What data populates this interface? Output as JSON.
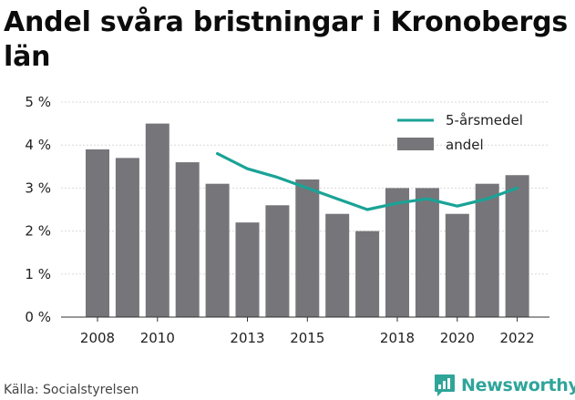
{
  "title": "Andel svåra bristningar i Kronobergs län",
  "source": "Källa: Socialstyrelsen",
  "brand": "Newsworthy",
  "colors": {
    "bar": "#76757a",
    "line": "#1aa396",
    "grid": "#d9d9d9",
    "brand": "#2fa59a"
  },
  "chart_data": {
    "type": "bar",
    "title": "Andel svåra bristningar i Kronobergs län",
    "x": [
      2008,
      2009,
      2010,
      2011,
      2012,
      2013,
      2014,
      2015,
      2016,
      2017,
      2018,
      2019,
      2020,
      2021,
      2022
    ],
    "x_tick_labels": [
      "2008",
      "2010",
      "2013",
      "2015",
      "2018",
      "2020",
      "2022"
    ],
    "y_tick_labels": [
      "0 %",
      "1 %",
      "2 %",
      "3 %",
      "4 %",
      "5 %"
    ],
    "ylim": [
      0,
      5
    ],
    "grid": true,
    "legend_position": "top-right",
    "series": [
      {
        "name": "andel",
        "type": "bar",
        "values": [
          3.9,
          3.7,
          4.5,
          3.6,
          3.1,
          2.2,
          2.6,
          3.2,
          2.4,
          2.0,
          3.0,
          3.0,
          2.4,
          3.1,
          3.3
        ]
      },
      {
        "name": "5-årsmedel",
        "type": "line",
        "values": [
          null,
          null,
          null,
          null,
          3.8,
          3.45,
          3.25,
          3.0,
          2.75,
          2.5,
          2.65,
          2.75,
          2.58,
          2.75,
          3.0
        ]
      }
    ]
  }
}
